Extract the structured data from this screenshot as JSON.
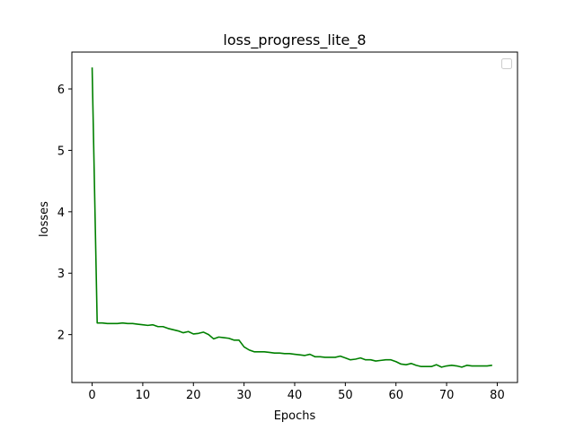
{
  "chart_data": {
    "type": "line",
    "title": "loss_progress_lite_8",
    "xlabel": "Epochs",
    "ylabel": "losses",
    "xlim": [
      -4,
      84
    ],
    "ylim": [
      1.22,
      6.6
    ],
    "xticks": [
      0,
      10,
      20,
      30,
      40,
      50,
      60,
      70,
      80
    ],
    "yticks": [
      2,
      3,
      4,
      5,
      6
    ],
    "grid": false,
    "legend": "top-right",
    "series": [
      {
        "color": "#008000",
        "x": [
          0,
          1,
          2,
          3,
          4,
          5,
          6,
          7,
          8,
          9,
          10,
          11,
          12,
          13,
          14,
          15,
          16,
          17,
          18,
          19,
          20,
          21,
          22,
          23,
          24,
          25,
          26,
          27,
          28,
          29,
          30,
          31,
          32,
          33,
          34,
          35,
          36,
          37,
          38,
          39,
          40,
          41,
          42,
          43,
          44,
          45,
          46,
          47,
          48,
          49,
          50,
          51,
          52,
          53,
          54,
          55,
          56,
          57,
          58,
          59,
          60,
          61,
          62,
          63,
          64,
          65,
          66,
          67,
          68,
          69,
          70,
          71,
          72,
          73,
          74,
          75,
          76,
          77,
          78,
          79
        ],
        "y": [
          6.35,
          2.19,
          2.19,
          2.18,
          2.18,
          2.18,
          2.19,
          2.18,
          2.18,
          2.17,
          2.16,
          2.15,
          2.16,
          2.13,
          2.13,
          2.1,
          2.08,
          2.06,
          2.03,
          2.05,
          2.01,
          2.02,
          2.04,
          2.0,
          1.93,
          1.96,
          1.95,
          1.94,
          1.91,
          1.91,
          1.8,
          1.75,
          1.72,
          1.72,
          1.72,
          1.71,
          1.7,
          1.7,
          1.69,
          1.69,
          1.68,
          1.67,
          1.66,
          1.68,
          1.64,
          1.64,
          1.63,
          1.63,
          1.63,
          1.65,
          1.62,
          1.59,
          1.6,
          1.62,
          1.59,
          1.59,
          1.57,
          1.58,
          1.59,
          1.59,
          1.56,
          1.52,
          1.51,
          1.53,
          1.5,
          1.48,
          1.48,
          1.48,
          1.51,
          1.47,
          1.49,
          1.5,
          1.49,
          1.47,
          1.5,
          1.49,
          1.49,
          1.49,
          1.49,
          1.5
        ]
      }
    ]
  }
}
